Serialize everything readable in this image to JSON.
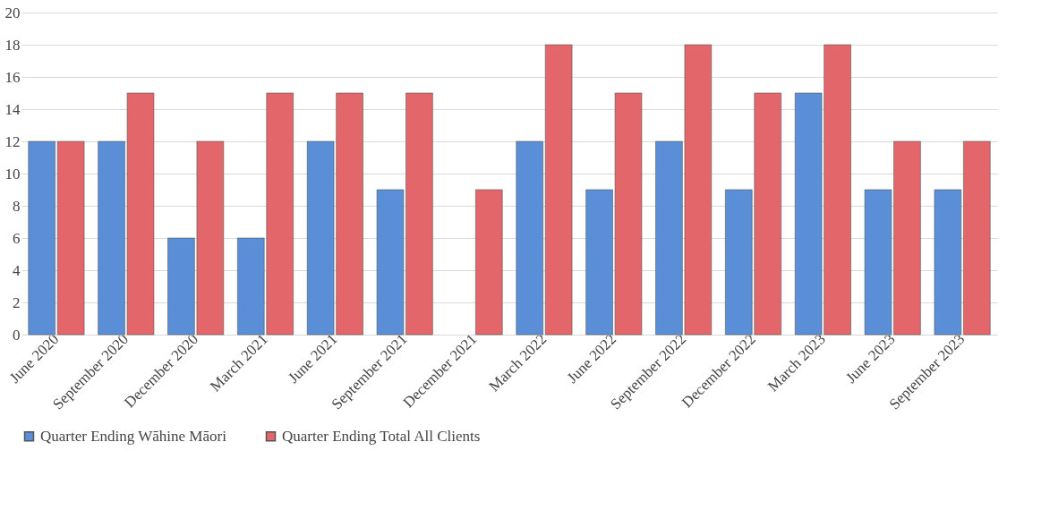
{
  "chart_data": {
    "type": "bar",
    "categories": [
      "June 2020",
      "September 2020",
      "December 2020",
      "March 2021",
      "June 2021",
      "September 2021",
      "December 2021",
      "March 2022",
      "June 2022",
      "September 2022",
      "December 2022",
      "March 2023",
      "June 2023",
      "September 2023"
    ],
    "series": [
      {
        "name": "Quarter Ending Wāhine Māori",
        "color": "#5a8fd8",
        "values": [
          12,
          12,
          6,
          6,
          12,
          9,
          null,
          12,
          9,
          12,
          9,
          15,
          9,
          9
        ]
      },
      {
        "name": "Quarter Ending Total All Clients",
        "color": "#e3666b",
        "values": [
          12,
          15,
          12,
          15,
          15,
          15,
          9,
          18,
          15,
          18,
          15,
          18,
          12,
          12
        ]
      }
    ],
    "ylim": [
      0,
      20
    ],
    "yticks": [
      0,
      2,
      4,
      6,
      8,
      10,
      12,
      14,
      16,
      18,
      20
    ],
    "grid": "y",
    "legend": "bottom"
  }
}
